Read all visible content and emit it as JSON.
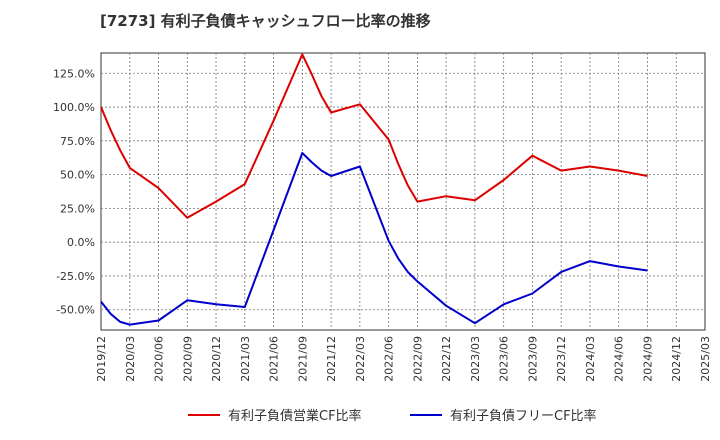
{
  "title": "[7273]  有利子負債キャッシュフロー比率の推移",
  "chart_data": {
    "type": "line",
    "title": "[7273]  有利子負債キャッシュフロー比率の推移",
    "xlabel": "",
    "ylabel": "",
    "x_ticks": [
      "2019/12",
      "2020/03",
      "2020/06",
      "2020/09",
      "2020/12",
      "2021/03",
      "2021/06",
      "2021/09",
      "2021/12",
      "2022/03",
      "2022/06",
      "2022/09",
      "2022/12",
      "2023/03",
      "2023/06",
      "2023/09",
      "2023/12",
      "2024/03",
      "2024/06",
      "2024/09",
      "2024/12",
      "2025/03"
    ],
    "y_ticks": [
      -50,
      -25,
      0,
      25,
      50,
      75,
      100,
      125
    ],
    "y_tick_labels": [
      "-50.0%",
      "-25.0%",
      "0.0%",
      "25.0%",
      "50.0%",
      "75.0%",
      "100.0%",
      "125.0%"
    ],
    "ylim": [
      -65,
      140
    ],
    "grid": true,
    "legend_position": "bottom",
    "series": [
      {
        "name": "有利子負債営業CF比率",
        "color": "#dd0000",
        "x": [
          "2019/12",
          "2020/01",
          "2020/02",
          "2020/03",
          "2020/06",
          "2020/09",
          "2020/12",
          "2021/03",
          "2021/06",
          "2021/09",
          "2021/10",
          "2021/11",
          "2021/12",
          "2022/03",
          "2022/06",
          "2022/07",
          "2022/08",
          "2022/09",
          "2022/12",
          "2023/03",
          "2023/06",
          "2023/09",
          "2023/12",
          "2024/03",
          "2024/06",
          "2024/09"
        ],
        "values": [
          100,
          83,
          68,
          55,
          40,
          18,
          30,
          43,
          90,
          139,
          124,
          108,
          96,
          102,
          76,
          58,
          42,
          30,
          34,
          31,
          46,
          64,
          53,
          56,
          53,
          49
        ]
      },
      {
        "name": "有利子負債フリーCF比率",
        "color": "#0000cc",
        "x": [
          "2019/12",
          "2020/01",
          "2020/02",
          "2020/03",
          "2020/06",
          "2020/09",
          "2020/12",
          "2021/03",
          "2021/06",
          "2021/09",
          "2021/10",
          "2021/11",
          "2021/12",
          "2022/03",
          "2022/06",
          "2022/07",
          "2022/08",
          "2022/09",
          "2022/12",
          "2023/03",
          "2023/06",
          "2023/09",
          "2023/12",
          "2024/03",
          "2024/06",
          "2024/09"
        ],
        "values": [
          -44,
          -53,
          -59,
          -61,
          -58,
          -43,
          -46,
          -48,
          9,
          66,
          59,
          53,
          49,
          56,
          1,
          -12,
          -22,
          -29,
          -47,
          -60,
          -46,
          -38,
          -22,
          -14,
          -18,
          -21
        ]
      }
    ]
  }
}
